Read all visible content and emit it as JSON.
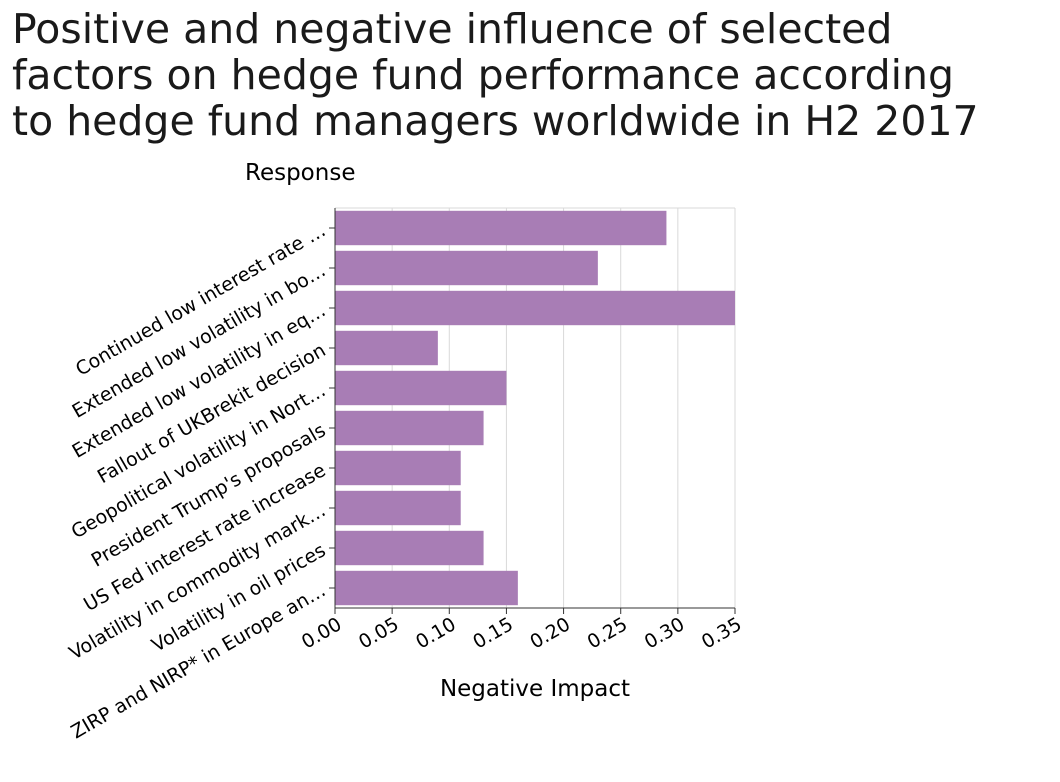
{
  "chart_data": {
    "type": "bar",
    "orientation": "horizontal",
    "title_lines": [
      "Positive and negative influence of selected",
      "factors on hedge fund performance according",
      "to hedge fund managers worldwide in H2 2017"
    ],
    "ylabel": "Response",
    "xlabel": "Negative Impact",
    "categories": [
      "Continued low interest rate …",
      "Extended low volatility in bo…",
      "Extended low volatility in eq…",
      "Fallout of UKBrekit decision",
      "Geopolitical volatility in Nort…",
      "President Trump's proposals",
      "US Fed interest rate increase",
      "Volatility in commodity mark…",
      "Volatility in oil prices",
      "ZIRP and NIRP* in Europe an…"
    ],
    "values": [
      0.29,
      0.23,
      0.35,
      0.09,
      0.15,
      0.13,
      0.11,
      0.11,
      0.13,
      0.16
    ],
    "xlim": [
      0,
      0.35
    ],
    "xticks": [
      "0.00",
      "0.05",
      "0.10",
      "0.15",
      "0.20",
      "0.25",
      "0.30",
      "0.35"
    ],
    "grid": true,
    "bar_color": "#a87db5"
  }
}
